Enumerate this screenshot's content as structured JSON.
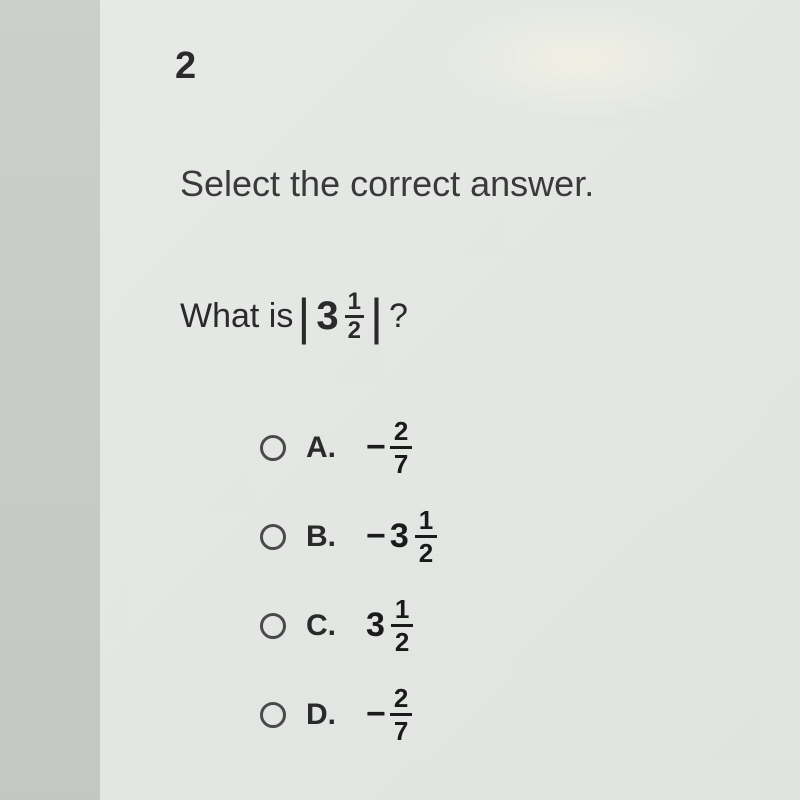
{
  "question_number": "2",
  "instruction": "Select the correct answer.",
  "question_prefix": "What is",
  "expr_whole": "3",
  "expr_num": "1",
  "expr_den": "2",
  "qmark": "?",
  "options": {
    "a": {
      "letter": "A.",
      "sign": "−",
      "num": "2",
      "den": "7"
    },
    "b": {
      "letter": "B.",
      "sign": "−",
      "whole": "3",
      "num": "1",
      "den": "2"
    },
    "c": {
      "letter": "C.",
      "whole": "3",
      "num": "1",
      "den": "2"
    },
    "d": {
      "letter": "D.",
      "sign": "−",
      "num": "2",
      "den": "7"
    }
  }
}
